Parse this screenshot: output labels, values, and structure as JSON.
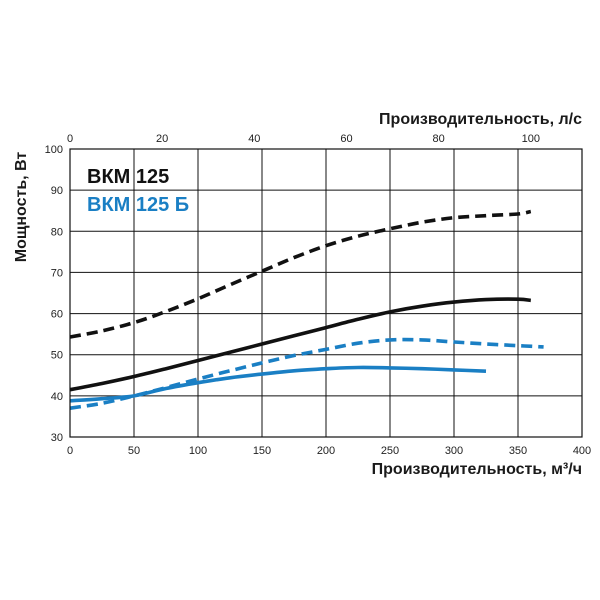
{
  "colors": {
    "black": "#111111",
    "blue": "#1a7fc4"
  },
  "chart_data": {
    "type": "line",
    "title": "",
    "xlabel": "Производительность, м³/ч",
    "x2label": "Производительность, л/с",
    "ylabel": "Мощность, Вт",
    "xlim": [
      0,
      400
    ],
    "x2lim": [
      0,
      111.11
    ],
    "ylim": [
      30,
      100
    ],
    "x_ticks": [
      "0",
      "50",
      "100",
      "150",
      "200",
      "250",
      "300",
      "350",
      "400"
    ],
    "x_tick_values": [
      0,
      50,
      100,
      150,
      200,
      250,
      300,
      350,
      400
    ],
    "x2_ticks": [
      "0",
      "20",
      "40",
      "60",
      "80",
      "100"
    ],
    "x2_tick_values": [
      0,
      20,
      40,
      60,
      80,
      100
    ],
    "y_ticks": [
      "30",
      "40",
      "50",
      "60",
      "70",
      "80",
      "90",
      "100"
    ],
    "y_tick_values": [
      30,
      40,
      50,
      60,
      70,
      80,
      90,
      100
    ],
    "grid": true,
    "legend": [
      {
        "label": "ВКМ 125",
        "color": "#111111"
      },
      {
        "label": "ВКМ 125 Б",
        "color": "#1a7fc4"
      }
    ],
    "series": [
      {
        "name": "ВКМ 125 (solid)",
        "color": "#111111",
        "style": "solid",
        "x": [
          0,
          25,
          50,
          75,
          100,
          125,
          150,
          175,
          200,
          225,
          250,
          275,
          300,
          325,
          350,
          360
        ],
        "y": [
          41.5,
          43,
          44.7,
          46.6,
          48.6,
          50.6,
          52.6,
          54.6,
          56.6,
          58.6,
          60.4,
          61.8,
          62.8,
          63.4,
          63.5,
          63.2
        ]
      },
      {
        "name": "ВКМ 125 (dashed)",
        "color": "#111111",
        "style": "dashed",
        "x": [
          0,
          25,
          50,
          75,
          100,
          125,
          150,
          175,
          200,
          225,
          250,
          275,
          300,
          325,
          350,
          360
        ],
        "y": [
          54.3,
          55.8,
          57.8,
          60.5,
          63.6,
          67,
          70.3,
          73.6,
          76.5,
          78.8,
          80.6,
          82.2,
          83.3,
          83.8,
          84.2,
          84.8
        ]
      },
      {
        "name": "ВКМ 125 Б (solid)",
        "color": "#1a7fc4",
        "style": "solid",
        "x": [
          0,
          25,
          50,
          75,
          100,
          125,
          150,
          175,
          200,
          225,
          250,
          275,
          300,
          325
        ],
        "y": [
          38.8,
          39.3,
          40,
          41.8,
          43.2,
          44.4,
          45.3,
          46.1,
          46.6,
          46.9,
          46.8,
          46.6,
          46.3,
          46
        ]
      },
      {
        "name": "ВКМ 125 Б (dashed)",
        "color": "#1a7fc4",
        "style": "dashed",
        "x": [
          0,
          25,
          50,
          75,
          100,
          125,
          150,
          175,
          200,
          225,
          250,
          275,
          300,
          325,
          350,
          370
        ],
        "y": [
          37,
          38.2,
          40,
          42,
          44.1,
          46.1,
          48,
          49.8,
          51.3,
          52.8,
          53.6,
          53.6,
          53.1,
          52.6,
          52.2,
          51.9
        ]
      }
    ]
  }
}
